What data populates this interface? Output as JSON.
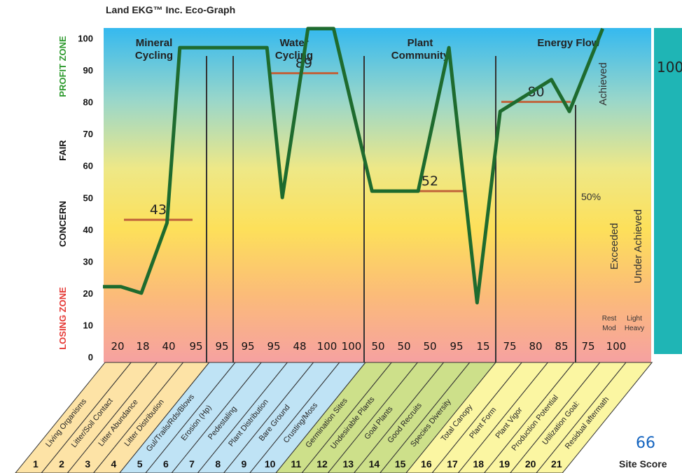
{
  "chart_data": {
    "type": "line",
    "title": "Land EKG™ Inc. Eco-Graph",
    "y_ticks": [
      "0",
      "10",
      "20",
      "30",
      "40",
      "50",
      "60",
      "70",
      "80",
      "90",
      "100"
    ],
    "ylim": [
      0,
      100
    ],
    "zones": [
      {
        "label": "LOSING ZONE",
        "color": "#e53935"
      },
      {
        "label": "CONCERN",
        "color": "#111111"
      },
      {
        "label": "FAIR",
        "color": "#111111"
      },
      {
        "label": "PROFIT ZONE",
        "color": "#2e9a2e"
      }
    ],
    "categories": [
      {
        "name": "Mineral Cycling",
        "average": "43"
      },
      {
        "name": "Water Cycling",
        "average": "89"
      },
      {
        "name": "Plant Community",
        "average": "52"
      },
      {
        "name": "Energy Flow",
        "average": "80"
      }
    ],
    "indicators": [
      {
        "num": "1",
        "name": "Living Organisms",
        "score": "20"
      },
      {
        "num": "2",
        "name": "Litter/Soil Contact",
        "score": "18"
      },
      {
        "num": "3",
        "name": "Litter Abundance",
        "score": "40"
      },
      {
        "num": "4",
        "name": "Litter Distribution",
        "score": "95"
      },
      {
        "num": "5",
        "name": "Gul/Trails/Rds/Blows",
        "score": "95"
      },
      {
        "num": "6",
        "name": "Erosion (Hp)",
        "score": "95"
      },
      {
        "num": "7",
        "name": "Pedestaling",
        "score": "95"
      },
      {
        "num": "8",
        "name": "Plant Distribution",
        "score": "48"
      },
      {
        "num": "9",
        "name": "Bare Ground",
        "score": "100"
      },
      {
        "num": "10",
        "name": "Crusting/Moss",
        "score": "100"
      },
      {
        "num": "11",
        "name": "Germination Sites",
        "score": "50"
      },
      {
        "num": "12",
        "name": "Undesirable Plants",
        "score": "50"
      },
      {
        "num": "13",
        "name": "Goal Plants",
        "score": "50"
      },
      {
        "num": "14",
        "name": "Good Recruits",
        "score": "95"
      },
      {
        "num": "15",
        "name": "Species Diversity",
        "score": "15"
      },
      {
        "num": "16",
        "name": "Total Canopy",
        "score": "75"
      },
      {
        "num": "17",
        "name": "Plant Form",
        "score": "80"
      },
      {
        "num": "18",
        "name": "Plant Vigor",
        "score": "85"
      },
      {
        "num": "19",
        "name": "Production Potential",
        "score": "75"
      },
      {
        "num": "20",
        "name": "Utilization Goal:",
        "score": "100"
      },
      {
        "num": "21",
        "name": "Residual aftermath",
        "score": ""
      }
    ],
    "line_points": [
      {
        "x": 0,
        "y": 22
      },
      {
        "x": 0.7,
        "y": 22
      },
      {
        "x": 1.5,
        "y": 20
      },
      {
        "x": 2.5,
        "y": 42
      },
      {
        "x": 3.0,
        "y": 97
      },
      {
        "x": 6.4,
        "y": 97
      },
      {
        "x": 7.0,
        "y": 50
      },
      {
        "x": 8.0,
        "y": 103
      },
      {
        "x": 9.0,
        "y": 103
      },
      {
        "x": 10.5,
        "y": 52
      },
      {
        "x": 12.3,
        "y": 52
      },
      {
        "x": 13.5,
        "y": 97
      },
      {
        "x": 14.6,
        "y": 17
      },
      {
        "x": 15.5,
        "y": 77
      },
      {
        "x": 17.5,
        "y": 87
      },
      {
        "x": 18.2,
        "y": 77
      },
      {
        "x": 19.5,
        "y": 103
      }
    ],
    "utilization": {
      "achieved": "Achieved",
      "fifty": "50%",
      "exceeded": "Exceeded",
      "under": "Under Achieved",
      "rest": "Rest",
      "mod": "Mod",
      "light": "Light",
      "heavy": "Heavy",
      "right_value": "100",
      "bar_value": 100
    },
    "site_score": {
      "value": "66",
      "label": "Site Score"
    },
    "colors": {
      "line": "#1e6b2e",
      "average": "#c0623a",
      "mineral_band": "#fde3a6",
      "water_band": "#bfe3f5",
      "plant_band": "#cde08a",
      "energy_band": "#fbf6a2",
      "bar": "#1fb5b5"
    }
  }
}
